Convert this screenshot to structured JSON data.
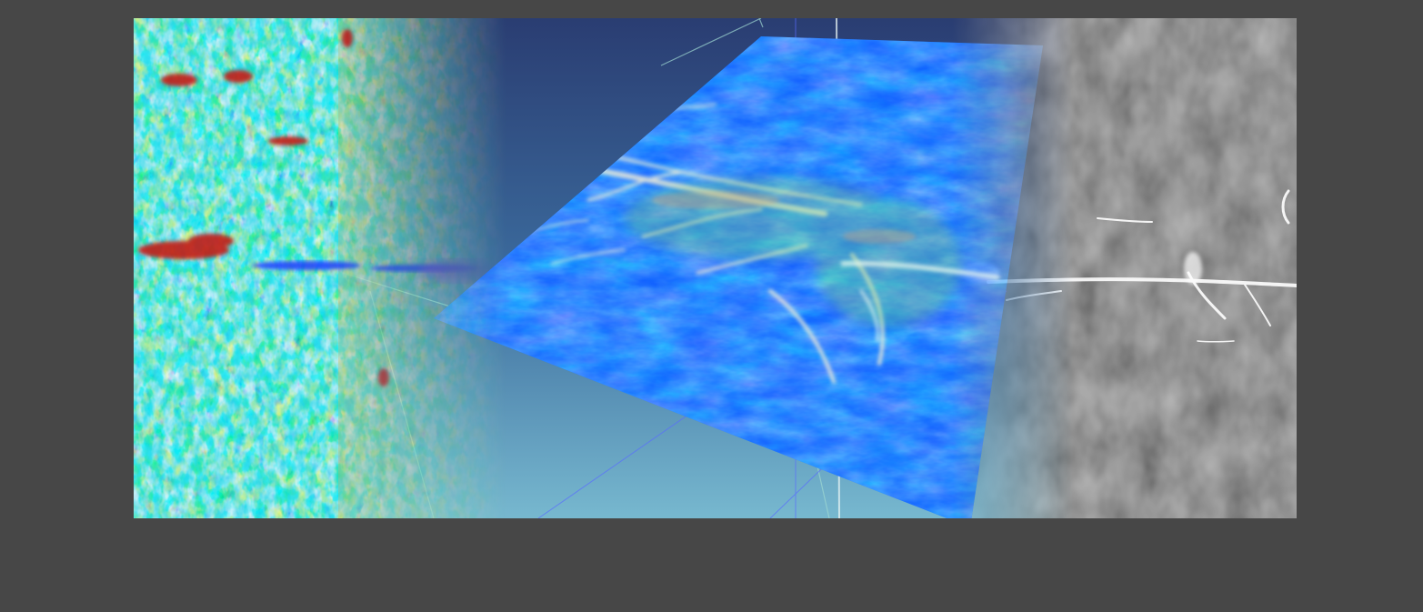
{
  "page": {
    "background_color": "#474747"
  },
  "banner": {
    "icon": "seismic-volume-visualization-image",
    "panels": [
      {
        "name": "heatmap-section",
        "colormap": [
          "#00e5f5",
          "#1e6cff",
          "#f0e84a",
          "#c81a10"
        ]
      },
      {
        "name": "3d-volume-render",
        "colors": [
          "#2a3f73",
          "#0f64ff",
          "#7fbfe6",
          "#f2f2e6"
        ]
      },
      {
        "name": "grayscale-section",
        "colors": [
          "#2e2e2e",
          "#5a5a5a",
          "#ffffff"
        ]
      }
    ]
  }
}
